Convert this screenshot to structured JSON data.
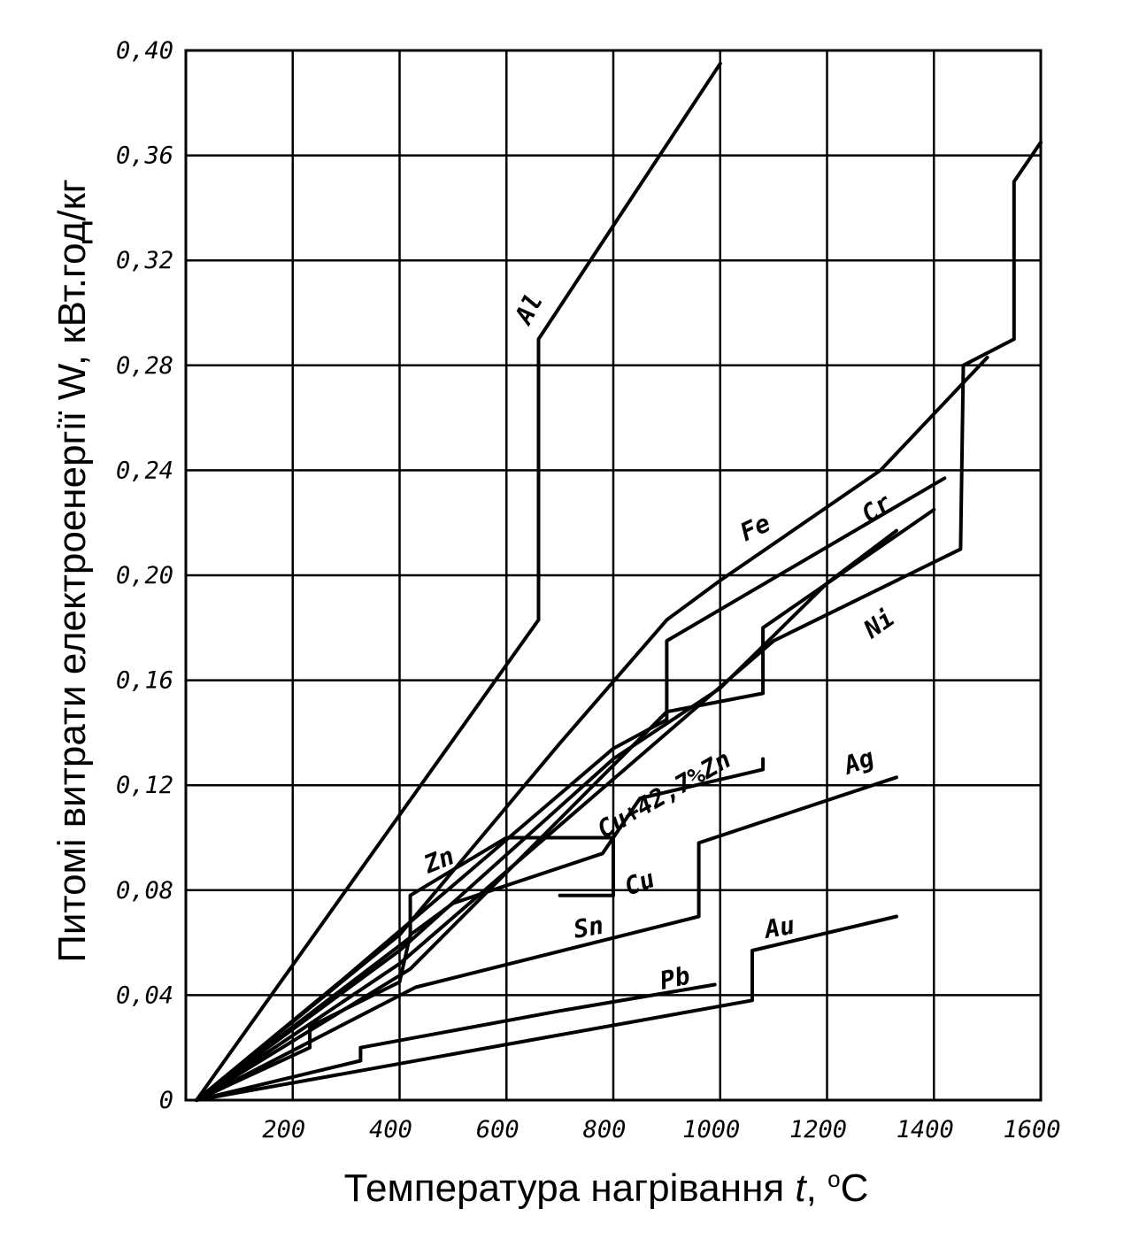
{
  "chart_data": {
    "type": "line",
    "xlabel": "Температура нагрівання t, °С",
    "xlabel_parts": {
      "text": "Температура нагрівання ",
      "var": "t",
      "sep": ", ",
      "deg": "o",
      "unit": "С"
    },
    "ylabel": "Питомі витрати електроенергії W, кВт.год/кг",
    "xlim": [
      0,
      1600
    ],
    "ylim": [
      0,
      0.4
    ],
    "x_ticks": [
      "200",
      "400",
      "600",
      "800",
      "1000",
      "1200",
      "1400",
      "1600"
    ],
    "y_ticks": [
      "0",
      "0,04",
      "0,08",
      "0,12",
      "0,16",
      "0,20",
      "0,24",
      "0,28",
      "0,32",
      "0,36",
      "0,40"
    ],
    "grid": true,
    "series": [
      {
        "name": "Al",
        "points": [
          [
            20,
            0
          ],
          [
            660,
            0.183
          ],
          [
            660,
            0.29
          ],
          [
            1000,
            0.395
          ]
        ]
      },
      {
        "name": "Fe",
        "points": [
          [
            20,
            0
          ],
          [
            400,
            0.063
          ],
          [
            700,
            0.136
          ],
          [
            900,
            0.183
          ],
          [
            1000,
            0.198
          ],
          [
            1300,
            0.24
          ],
          [
            1500,
            0.283
          ]
        ]
      },
      {
        "name": "Cr",
        "points": [
          [
            20,
            0
          ],
          [
            400,
            0.057
          ],
          [
            800,
            0.13
          ],
          [
            1000,
            0.157
          ],
          [
            1200,
            0.197
          ],
          [
            1330,
            0.217
          ]
        ]
      },
      {
        "name": "Ni",
        "points": [
          [
            20,
            0
          ],
          [
            400,
            0.052
          ],
          [
            1100,
            0.175
          ],
          [
            1450,
            0.21
          ],
          [
            1455,
            0.28
          ],
          [
            1550,
            0.29
          ],
          [
            1550,
            0.35
          ],
          [
            1600,
            0.365
          ]
        ]
      },
      {
        "name": "Zn",
        "points": [
          [
            20,
            0
          ],
          [
            420,
            0.062
          ],
          [
            420,
            0.078
          ],
          [
            600,
            0.1
          ],
          [
            800,
            0.1
          ],
          [
            800,
            0.078
          ],
          [
            700,
            0.078
          ]
        ]
      },
      {
        "name": "Cu+42,7%Zn",
        "points": [
          [
            20,
            0
          ],
          [
            300,
            0.047
          ],
          [
            800,
            0.134
          ],
          [
            900,
            0.145
          ],
          [
            900,
            0.175
          ],
          [
            1420,
            0.237
          ]
        ]
      },
      {
        "name": "Cu",
        "points": [
          [
            20,
            0
          ],
          [
            420,
            0.05
          ],
          [
            900,
            0.148
          ],
          [
            1080,
            0.155
          ],
          [
            1080,
            0.18
          ],
          [
            1400,
            0.225
          ]
        ]
      },
      {
        "name": "Sn",
        "points": [
          [
            20,
            0
          ],
          [
            232,
            0.02
          ],
          [
            232,
            0.028
          ],
          [
            400,
            0.045
          ],
          [
            420,
            0.063
          ],
          [
            500,
            0.075
          ],
          [
            780,
            0.094
          ],
          [
            850,
            0.115
          ],
          [
            1080,
            0.126
          ],
          [
            1080,
            0.13
          ]
        ]
      },
      {
        "name": "Ag",
        "points": [
          [
            20,
            0
          ],
          [
            430,
            0.043
          ],
          [
            960,
            0.07
          ],
          [
            960,
            0.098
          ],
          [
            1330,
            0.123
          ]
        ]
      },
      {
        "name": "Pb",
        "points": [
          [
            20,
            0
          ],
          [
            327,
            0.015
          ],
          [
            327,
            0.02
          ],
          [
            700,
            0.034
          ],
          [
            990,
            0.044
          ]
        ]
      },
      {
        "name": "Au",
        "points": [
          [
            20,
            0
          ],
          [
            1060,
            0.038
          ],
          [
            1060,
            0.057
          ],
          [
            1330,
            0.07
          ]
        ]
      }
    ]
  }
}
